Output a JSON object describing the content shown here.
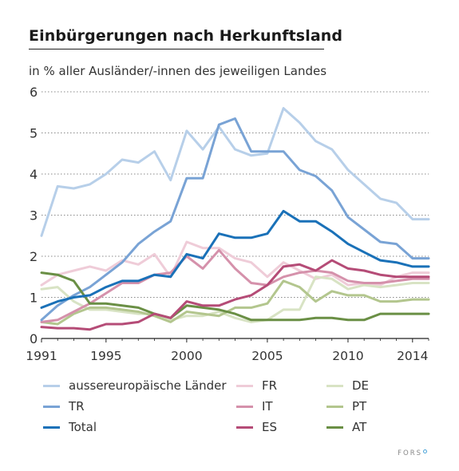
{
  "title": "Einbürgerungen nach Herkunftsland",
  "subtitle": "in % aller Ausländer/-innen des jeweiligen Landes",
  "footer": "FORS",
  "chart_data": {
    "type": "line",
    "x": [
      1991,
      1992,
      1993,
      1994,
      1995,
      1996,
      1997,
      1998,
      1999,
      2000,
      2001,
      2002,
      2003,
      2004,
      2005,
      2006,
      2007,
      2008,
      2009,
      2010,
      2011,
      2012,
      2013,
      2014,
      2015
    ],
    "xticks": [
      "1991",
      "1995",
      "2000",
      "2005",
      "2010",
      "2014"
    ],
    "xtick_values": [
      1991,
      1995,
      2000,
      2005,
      2010,
      2014
    ],
    "yticks": [
      "0",
      "1",
      "2",
      "3",
      "4",
      "5",
      "6"
    ],
    "ylim": [
      0,
      6
    ],
    "grid": "horizontal dotted",
    "legend_position": "bottom",
    "series": [
      {
        "name": "aussereuropäische Länder",
        "color": "#b7cfe9",
        "values": [
          2.5,
          3.7,
          3.65,
          3.75,
          4.0,
          4.35,
          4.28,
          4.55,
          3.85,
          5.05,
          4.6,
          5.15,
          4.6,
          4.45,
          4.5,
          5.6,
          5.25,
          4.8,
          4.6,
          4.1,
          3.75,
          3.4,
          3.3,
          2.9,
          2.9
        ]
      },
      {
        "name": "TR",
        "color": "#79a3d5",
        "values": [
          0.45,
          0.8,
          1.05,
          1.25,
          1.55,
          1.85,
          2.3,
          2.6,
          2.85,
          3.9,
          3.9,
          5.2,
          5.35,
          4.55,
          4.55,
          4.55,
          4.1,
          3.95,
          3.6,
          2.95,
          2.65,
          2.35,
          2.3,
          1.95,
          1.95
        ]
      },
      {
        "name": "Total",
        "color": "#1a71b8",
        "values": [
          0.75,
          0.9,
          1.0,
          1.05,
          1.25,
          1.4,
          1.4,
          1.55,
          1.5,
          2.05,
          1.95,
          2.55,
          2.45,
          2.45,
          2.55,
          3.1,
          2.85,
          2.85,
          2.6,
          2.3,
          2.1,
          1.9,
          1.85,
          1.75,
          1.75
        ]
      },
      {
        "name": "FR",
        "color": "#efccd8",
        "values": [
          1.3,
          1.55,
          1.65,
          1.75,
          1.65,
          1.9,
          1.8,
          2.05,
          1.5,
          2.35,
          2.2,
          2.2,
          1.95,
          1.85,
          1.5,
          1.85,
          1.65,
          1.45,
          1.55,
          1.3,
          1.35,
          1.3,
          1.5,
          1.6,
          1.6
        ]
      },
      {
        "name": "IT",
        "color": "#d591ab",
        "values": [
          0.4,
          0.45,
          0.65,
          0.85,
          1.1,
          1.35,
          1.35,
          1.55,
          1.6,
          2.0,
          1.7,
          2.15,
          1.7,
          1.35,
          1.3,
          1.5,
          1.6,
          1.65,
          1.6,
          1.4,
          1.35,
          1.35,
          1.4,
          1.45,
          1.45
        ]
      },
      {
        "name": "ES",
        "color": "#b54c77",
        "values": [
          0.28,
          0.25,
          0.25,
          0.22,
          0.35,
          0.35,
          0.4,
          0.6,
          0.5,
          0.9,
          0.8,
          0.8,
          0.95,
          1.05,
          1.3,
          1.75,
          1.8,
          1.65,
          1.9,
          1.7,
          1.65,
          1.55,
          1.5,
          1.5,
          1.5
        ]
      },
      {
        "name": "DE",
        "color": "#d8e3c4",
        "values": [
          1.2,
          1.25,
          0.9,
          0.7,
          0.7,
          0.65,
          0.6,
          0.6,
          0.45,
          0.55,
          0.55,
          0.65,
          0.5,
          0.4,
          0.45,
          0.7,
          0.7,
          1.5,
          1.45,
          1.2,
          1.3,
          1.25,
          1.3,
          1.35,
          1.35
        ]
      },
      {
        "name": "PT",
        "color": "#b3c68e",
        "values": [
          0.4,
          0.35,
          0.6,
          0.75,
          0.75,
          0.7,
          0.65,
          0.55,
          0.4,
          0.65,
          0.6,
          0.55,
          0.75,
          0.75,
          0.85,
          1.4,
          1.25,
          0.9,
          1.15,
          1.05,
          1.05,
          0.9,
          0.9,
          0.95,
          0.95
        ]
      },
      {
        "name": "AT",
        "color": "#6a8f45",
        "values": [
          1.6,
          1.55,
          1.4,
          0.85,
          0.85,
          0.8,
          0.75,
          0.6,
          0.5,
          0.8,
          0.75,
          0.7,
          0.6,
          0.45,
          0.45,
          0.45,
          0.45,
          0.5,
          0.5,
          0.45,
          0.45,
          0.6,
          0.6,
          0.6,
          0.6
        ]
      }
    ]
  },
  "legend": {
    "columns": [
      [
        "aussereuropäische Länder",
        "TR",
        "Total"
      ],
      [
        "FR",
        "IT",
        "ES"
      ],
      [
        "DE",
        "PT",
        "AT"
      ]
    ]
  }
}
